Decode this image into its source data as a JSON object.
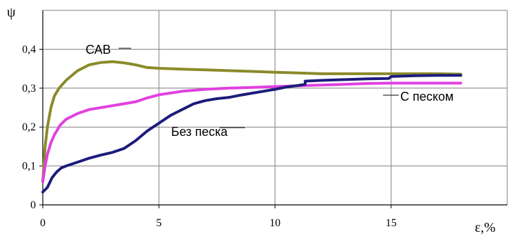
{
  "chart_data": {
    "type": "line",
    "title": "",
    "xlabel": "ε,%",
    "ylabel": "ψ",
    "xlim": [
      0,
      20
    ],
    "ylim": [
      0,
      0.5
    ],
    "xticks": [
      0,
      5,
      10,
      15
    ],
    "yticks": [
      0,
      0.1,
      0.2,
      0.3,
      0.4
    ],
    "xtick_labels": [
      "0",
      "5",
      "10",
      "15"
    ],
    "ytick_labels": [
      "0",
      "0,1",
      "0,2",
      "0,3",
      "0,4"
    ],
    "grid": true,
    "series": [
      {
        "name": "САВ",
        "color": "#8a8a2a",
        "points": [
          [
            0,
            0.06
          ],
          [
            0.1,
            0.15
          ],
          [
            0.2,
            0.2
          ],
          [
            0.35,
            0.25
          ],
          [
            0.5,
            0.28
          ],
          [
            0.7,
            0.3
          ],
          [
            1.0,
            0.32
          ],
          [
            1.5,
            0.345
          ],
          [
            2.0,
            0.36
          ],
          [
            2.5,
            0.366
          ],
          [
            3.0,
            0.368
          ],
          [
            3.5,
            0.365
          ],
          [
            4.0,
            0.36
          ],
          [
            4.5,
            0.353
          ],
          [
            5.0,
            0.351
          ],
          [
            6.0,
            0.349
          ],
          [
            7.0,
            0.347
          ],
          [
            8.0,
            0.345
          ],
          [
            9.0,
            0.343
          ],
          [
            10.0,
            0.341
          ],
          [
            11.0,
            0.339
          ],
          [
            12.0,
            0.337
          ],
          [
            13.0,
            0.337
          ],
          [
            14.0,
            0.337
          ],
          [
            15.0,
            0.337
          ],
          [
            16.0,
            0.337
          ],
          [
            17.0,
            0.337
          ],
          [
            18.0,
            0.336
          ]
        ]
      },
      {
        "name": "С песком",
        "color": "#e040e0",
        "points": [
          [
            0,
            0.06
          ],
          [
            0.1,
            0.1
          ],
          [
            0.2,
            0.13
          ],
          [
            0.35,
            0.16
          ],
          [
            0.5,
            0.18
          ],
          [
            0.75,
            0.205
          ],
          [
            1.0,
            0.22
          ],
          [
            1.5,
            0.235
          ],
          [
            2.0,
            0.245
          ],
          [
            2.5,
            0.25
          ],
          [
            3.0,
            0.255
          ],
          [
            3.5,
            0.26
          ],
          [
            4.0,
            0.265
          ],
          [
            4.5,
            0.275
          ],
          [
            5.0,
            0.283
          ],
          [
            6.0,
            0.292
          ],
          [
            7.0,
            0.297
          ],
          [
            8.0,
            0.3
          ],
          [
            9.0,
            0.302
          ],
          [
            10.0,
            0.304
          ],
          [
            11.0,
            0.306
          ],
          [
            12.0,
            0.308
          ],
          [
            13.0,
            0.31
          ],
          [
            14.0,
            0.312
          ],
          [
            15.0,
            0.313
          ],
          [
            16.0,
            0.313
          ],
          [
            17.0,
            0.313
          ],
          [
            18.0,
            0.313
          ]
        ]
      },
      {
        "name": "Без песка",
        "color": "#1c1c7c",
        "points": [
          [
            0,
            0.033
          ],
          [
            0.2,
            0.045
          ],
          [
            0.4,
            0.07
          ],
          [
            0.6,
            0.085
          ],
          [
            0.8,
            0.095
          ],
          [
            1.0,
            0.1
          ],
          [
            1.5,
            0.11
          ],
          [
            2.0,
            0.12
          ],
          [
            2.5,
            0.128
          ],
          [
            3.0,
            0.135
          ],
          [
            3.5,
            0.145
          ],
          [
            4.0,
            0.165
          ],
          [
            4.5,
            0.19
          ],
          [
            5.0,
            0.21
          ],
          [
            5.5,
            0.23
          ],
          [
            6.0,
            0.245
          ],
          [
            6.5,
            0.26
          ],
          [
            7.0,
            0.268
          ],
          [
            7.5,
            0.273
          ],
          [
            8.0,
            0.276
          ],
          [
            8.5,
            0.282
          ],
          [
            9.0,
            0.287
          ],
          [
            9.5,
            0.292
          ],
          [
            10.0,
            0.297
          ],
          [
            10.5,
            0.303
          ],
          [
            11.0,
            0.307
          ],
          [
            11.3,
            0.31
          ],
          [
            11.3,
            0.318
          ],
          [
            12.0,
            0.32
          ],
          [
            13.0,
            0.322
          ],
          [
            14.0,
            0.324
          ],
          [
            14.9,
            0.325
          ],
          [
            15.0,
            0.33
          ],
          [
            16.0,
            0.332
          ],
          [
            17.0,
            0.333
          ],
          [
            18.0,
            0.333
          ]
        ]
      }
    ],
    "annotations": [
      {
        "text": "САВ",
        "series": 0
      },
      {
        "text": "С песком",
        "series": 1
      },
      {
        "text": "Без песка",
        "series": 2
      }
    ]
  }
}
